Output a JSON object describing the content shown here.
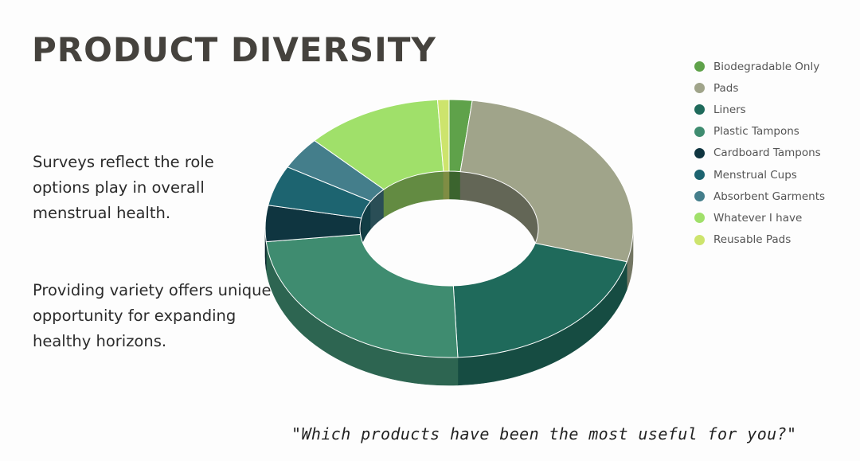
{
  "title": "PRODUCT DIVERSITY",
  "paragraph_1": "Surveys reflect the role options play in overall menstrual health.",
  "paragraph_2": "Providing variety offers unique opportunity for expanding healthy horizons.",
  "quote": "\"Which products have been the most useful for you?\"",
  "chart_data": {
    "type": "pie",
    "subtype": "donut-3d",
    "legend_position": "right",
    "categories": [
      "Biodegradable Only",
      "Pads",
      "Liners",
      "Plastic Tampons",
      "Cardboard Tampons",
      "Menstrual Cups",
      "Absorbent Garments",
      "Whatever I have",
      "Reusable Pads"
    ],
    "values": [
      2,
      27,
      20,
      24,
      4.5,
      5,
      4,
      12,
      1
    ],
    "colors": [
      "#5fa24a",
      "#a0a48a",
      "#1f6a5b",
      "#3f8c70",
      "#0f3540",
      "#1d6470",
      "#447e8b",
      "#a0e06a",
      "#cde46d"
    ]
  }
}
